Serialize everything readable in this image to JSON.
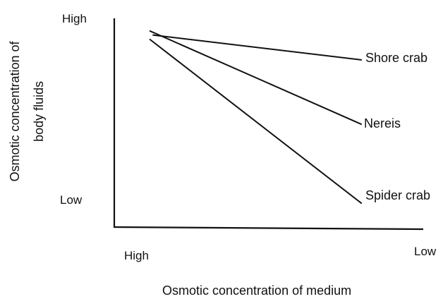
{
  "chart_data": {
    "type": "line",
    "title": "",
    "xlabel": "Osmotic concentration of medium",
    "ylabel_lines": [
      "Osmotic concentration of",
      "body fluids"
    ],
    "x_tick_labels": {
      "start": "High",
      "end": "Low"
    },
    "y_tick_labels": {
      "top": "High",
      "bottom": "Low"
    },
    "x_scale": "qualitative, decreasing left to right (High to Low)",
    "y_scale": "qualitative, increasing bottom to top (Low to High)",
    "xlim": [
      0,
      1
    ],
    "ylim": [
      0,
      1
    ],
    "grid": false,
    "legend": "none (series labelled directly at line ends)",
    "series": [
      {
        "name": "Shore crab",
        "x": [
          0.12,
          0.8
        ],
        "y": [
          0.92,
          0.8
        ]
      },
      {
        "name": "Nereis",
        "x": [
          0.11,
          0.8
        ],
        "y": [
          0.94,
          0.49
        ]
      },
      {
        "name": "Spider crab",
        "x": [
          0.11,
          0.8
        ],
        "y": [
          0.9,
          0.11
        ]
      }
    ],
    "line_color": "#111111"
  }
}
